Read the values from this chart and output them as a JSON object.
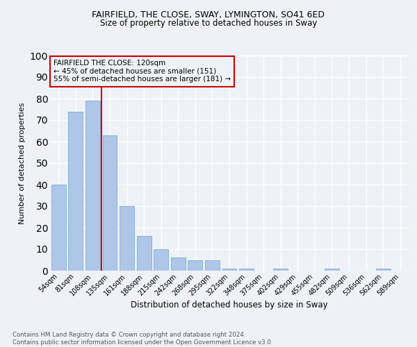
{
  "title1": "FAIRFIELD, THE CLOSE, SWAY, LYMINGTON, SO41 6ED",
  "title2": "Size of property relative to detached houses in Sway",
  "xlabel": "Distribution of detached houses by size in Sway",
  "ylabel": "Number of detached properties",
  "footnote": "Contains HM Land Registry data © Crown copyright and database right 2024.\nContains public sector information licensed under the Open Government Licence v3.0.",
  "categories": [
    "54sqm",
    "81sqm",
    "108sqm",
    "135sqm",
    "161sqm",
    "188sqm",
    "215sqm",
    "242sqm",
    "268sqm",
    "295sqm",
    "322sqm",
    "348sqm",
    "375sqm",
    "402sqm",
    "429sqm",
    "455sqm",
    "482sqm",
    "509sqm",
    "536sqm",
    "562sqm",
    "589sqm"
  ],
  "values": [
    40,
    74,
    79,
    63,
    30,
    16,
    10,
    6,
    5,
    5,
    1,
    1,
    0,
    1,
    0,
    0,
    1,
    0,
    0,
    1,
    0
  ],
  "bar_color": "#aec6e8",
  "bar_edge_color": "#7aaed0",
  "bg_color": "#eef2f8",
  "grid_color": "#ffffff",
  "vline_color": "#cc0000",
  "annotation_title": "FAIRFIELD THE CLOSE: 120sqm",
  "annotation_line2": "← 45% of detached houses are smaller (151)",
  "annotation_line3": "55% of semi-detached houses are larger (181) →",
  "annotation_box_color": "#cc0000",
  "ylim": [
    0,
    100
  ],
  "yticks": [
    0,
    10,
    20,
    30,
    40,
    50,
    60,
    70,
    80,
    90,
    100
  ]
}
